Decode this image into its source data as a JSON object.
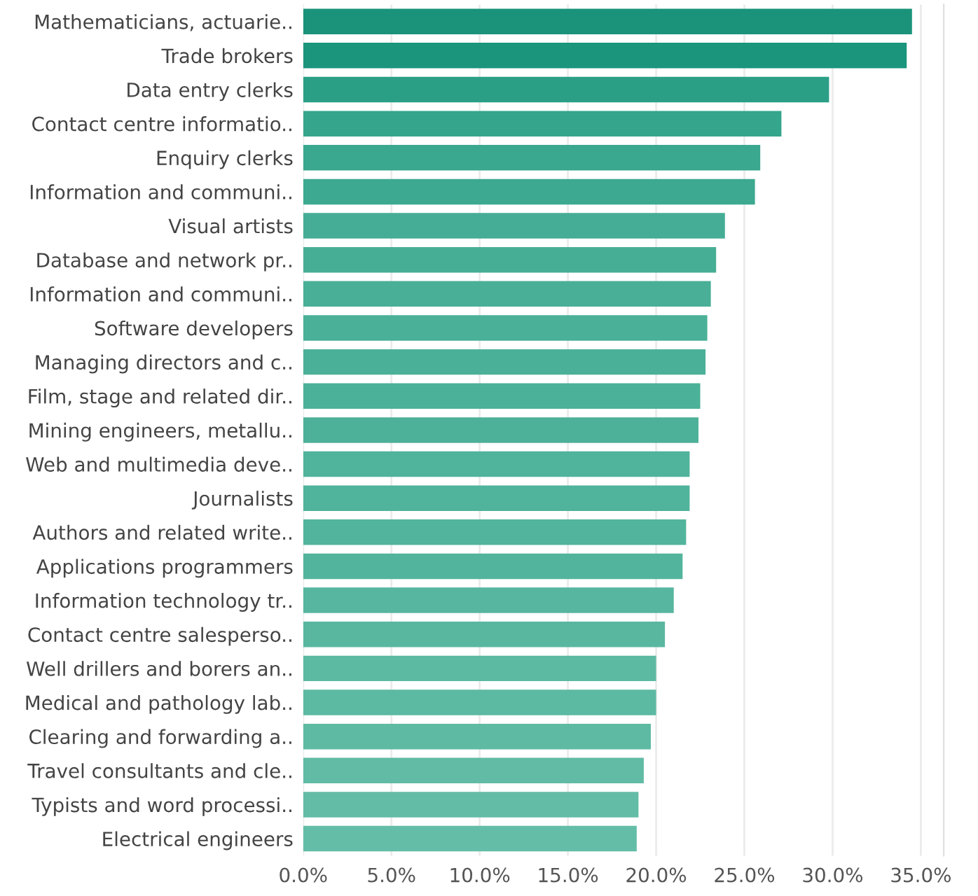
{
  "chart_data": {
    "type": "bar",
    "orientation": "horizontal",
    "categories": [
      "Mathematicians, actuarie..",
      "Trade brokers",
      "Data entry clerks",
      "Contact centre informatio..",
      "Enquiry clerks",
      "Information and communi..",
      "Visual artists",
      "Database and network pr..",
      "Information and communi..",
      "Software developers",
      "Managing directors and c..",
      "Film, stage and related dir..",
      "Mining engineers, metallu..",
      "Web and multimedia deve..",
      "Journalists",
      "Authors and related write..",
      "Applications programmers",
      "Information technology tr..",
      "Contact centre salesperso..",
      "Well drillers and borers an..",
      "Medical and pathology lab..",
      "Clearing and forwarding a..",
      "Travel consultants and cle..",
      "Typists and word processi..",
      "Electrical engineers"
    ],
    "values": [
      34.5,
      34.2,
      29.8,
      27.1,
      25.9,
      25.6,
      23.9,
      23.4,
      23.1,
      22.9,
      22.8,
      22.5,
      22.4,
      21.9,
      21.9,
      21.7,
      21.5,
      21.0,
      20.5,
      20.0,
      20.0,
      19.7,
      19.3,
      19.0,
      18.9
    ],
    "colors": [
      "#1a937a",
      "#1b957c",
      "#2a9f86",
      "#35a58c",
      "#3aa78f",
      "#3ca990",
      "#45ad95",
      "#47ae96",
      "#49af97",
      "#4ab098",
      "#4bb098",
      "#4cb199",
      "#4db199",
      "#50b39b",
      "#50b39b",
      "#52b49c",
      "#53b49d",
      "#56b69f",
      "#59b7a0",
      "#5cb9a2",
      "#5cb9a2",
      "#5ebaa3",
      "#61bba5",
      "#63bca6",
      "#64bda7"
    ],
    "xlim": [
      0,
      36.3
    ],
    "xticks": [
      {
        "value": 0,
        "label": "0.0%"
      },
      {
        "value": 5,
        "label": "5.0%"
      },
      {
        "value": 10,
        "label": "10.0%"
      },
      {
        "value": 15,
        "label": "15.0%"
      },
      {
        "value": 20,
        "label": "20.0%"
      },
      {
        "value": 25,
        "label": "25.0%"
      },
      {
        "value": 30,
        "label": "30.0%"
      },
      {
        "value": 35,
        "label": "35.0%"
      }
    ],
    "grid": "x"
  }
}
